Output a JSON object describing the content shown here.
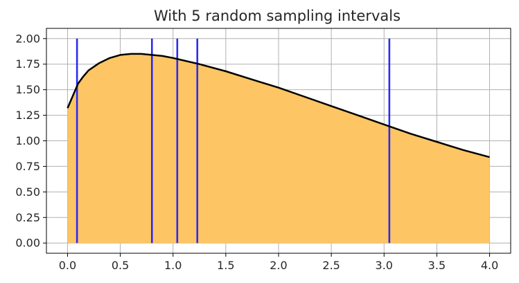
{
  "chart_data": {
    "type": "area",
    "title": "With 5 random sampling intervals",
    "xlabel": "",
    "ylabel": "",
    "xlim": [
      -0.2,
      4.2
    ],
    "ylim": [
      -0.1,
      2.1
    ],
    "x_ticks": [
      "0.0",
      "0.5",
      "1.0",
      "1.5",
      "2.0",
      "2.5",
      "3.0",
      "3.5",
      "4.0"
    ],
    "y_ticks": [
      "0.00",
      "0.25",
      "0.50",
      "0.75",
      "1.00",
      "1.25",
      "1.50",
      "1.75",
      "2.00"
    ],
    "grid": true,
    "legend": "none",
    "series": [
      {
        "x": [
          0.0,
          0.05,
          0.1,
          0.15,
          0.2,
          0.3,
          0.4,
          0.5,
          0.6,
          0.7,
          0.8,
          0.9,
          1.0,
          1.25,
          1.5,
          1.75,
          2.0,
          2.25,
          2.5,
          2.75,
          3.0,
          3.25,
          3.5,
          3.75,
          4.0
        ],
        "y": [
          1.32,
          1.44,
          1.56,
          1.63,
          1.69,
          1.76,
          1.81,
          1.84,
          1.85,
          1.85,
          1.84,
          1.83,
          1.81,
          1.75,
          1.68,
          1.6,
          1.52,
          1.43,
          1.34,
          1.25,
          1.16,
          1.07,
          0.99,
          0.91,
          0.84
        ]
      }
    ],
    "sampling_intervals": [
      0.09,
      0.8,
      1.04,
      1.23,
      3.05
    ],
    "interval_line_top": 2.0,
    "colors": {
      "fill": "#fdc563",
      "curve": "#000000",
      "interval_lines": "#2b2bf5",
      "grid": "#b0b0b0",
      "axes": "#000000"
    }
  }
}
